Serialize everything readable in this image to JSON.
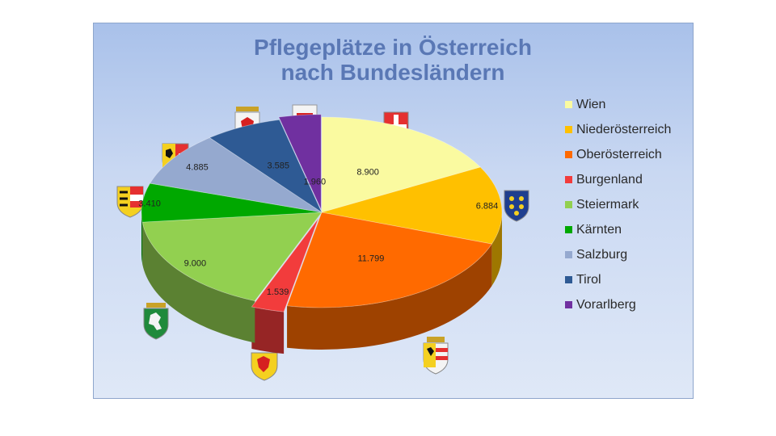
{
  "chart_data": {
    "type": "pie",
    "title_lines": [
      "Pflegeplätze in Österreich",
      "nach Bundesländern"
    ],
    "slices": [
      {
        "name": "Wien",
        "label": "8.900",
        "value": 8900,
        "color": "#fafaa0"
      },
      {
        "name": "Niederösterreich",
        "label": "6.884",
        "value": 6884,
        "color": "#ffc000"
      },
      {
        "name": "Oberösterreich",
        "label": "11.799",
        "value": 11799,
        "color": "#ff6a00"
      },
      {
        "name": "Burgenland",
        "label": "1.539",
        "value": 1539,
        "color": "#f23c3c"
      },
      {
        "name": "Steiermark",
        "label": "9.000",
        "value": 9000,
        "color": "#92d050"
      },
      {
        "name": "Kärnten",
        "label": "3.410",
        "value": 3410,
        "color": "#00a800"
      },
      {
        "name": "Salzburg",
        "label": "4.885",
        "value": 4885,
        "color": "#95a9cf"
      },
      {
        "name": "Tirol",
        "label": "3.585",
        "value": 3585,
        "color": "#2e5a94"
      },
      {
        "name": "Vorarlberg",
        "label": "1.960",
        "value": 1960,
        "color": "#7030a0"
      }
    ],
    "legend_position": "right",
    "style": "3d-exploded-pie"
  }
}
